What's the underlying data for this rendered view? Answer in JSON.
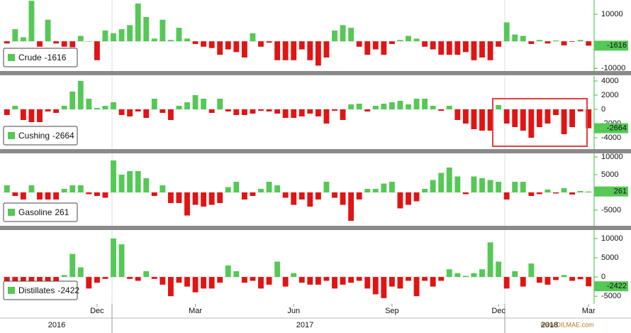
{
  "chart_data": [
    {
      "type": "bar",
      "name": "Crude",
      "color": "#55c855",
      "negative_color": "#e01414",
      "ylim": [
        -11000,
        15300
      ],
      "yticks": [
        10000,
        -10000
      ],
      "values": [
        -800,
        4500,
        1500,
        15000,
        -2000,
        8000,
        -800,
        -2000,
        -2200,
        2000,
        0,
        -7000,
        4000,
        3000,
        4500,
        6000,
        14000,
        9000,
        1000,
        8000,
        500,
        5000,
        1000,
        -1000,
        -2000,
        -2500,
        -5000,
        -3000,
        -4000,
        -6000,
        3000,
        -2000,
        -500,
        -7000,
        -7000,
        -7000,
        -3000,
        -7000,
        -9000,
        -6000,
        4000,
        6000,
        5000,
        -2000,
        -5000,
        -3000,
        -5000,
        -1000,
        500,
        2000,
        1000,
        -2000,
        -3000,
        -5000,
        -5000,
        -5000,
        -4000,
        -7000,
        -6000,
        -7000,
        -2000,
        7000,
        2500,
        2000,
        -1000,
        500,
        -800,
        300,
        -1500,
        -200,
        500,
        -1616
      ]
    },
    {
      "type": "bar",
      "name": "Cushing",
      "color": "#55c855",
      "negative_color": "#e01414",
      "ylim": [
        -5600,
        4700
      ],
      "yticks": [
        4000,
        2000,
        0,
        -2000,
        -4000
      ],
      "values": [
        -800,
        500,
        -1500,
        -1800,
        -1800,
        -300,
        -500,
        500,
        2500,
        4000,
        1500,
        200,
        500,
        1000,
        -800,
        -1000,
        -300,
        -1200,
        1500,
        -500,
        -1500,
        500,
        1000,
        2000,
        1500,
        -500,
        1500,
        -300,
        -800,
        -800,
        -600,
        -200,
        -300,
        -600,
        -1200,
        -1200,
        -1000,
        -600,
        -1000,
        -2000,
        -200,
        -1500,
        700,
        800,
        -300,
        500,
        800,
        1000,
        1200,
        700,
        1500,
        1500,
        500,
        -200,
        500,
        -1500,
        -2000,
        -2800,
        -3000,
        -3000,
        600,
        -2000,
        -2500,
        -3000,
        -4000,
        -2500,
        -2000,
        -800,
        -3500,
        -2500,
        -300,
        -2664
      ]
    },
    {
      "type": "bar",
      "name": "Gasoline",
      "color": "#55c855",
      "negative_color": "#e01414",
      "ylim": [
        -9400,
        11000
      ],
      "yticks": [
        10000,
        5000,
        -5000
      ],
      "values": [
        2000,
        -1000,
        -2000,
        2000,
        -2000,
        -2000,
        -2000,
        1000,
        2000,
        2000,
        -500,
        -1000,
        -1500,
        9000,
        5000,
        6000,
        6000,
        4000,
        -1000,
        2000,
        -3000,
        -3000,
        -6500,
        -3500,
        -4000,
        -3500,
        -3000,
        1500,
        3000,
        -2000,
        -1000,
        1000,
        3000,
        2000,
        -1500,
        -3500,
        -2000,
        -4000,
        -2000,
        3000,
        -1500,
        -3500,
        -8000,
        -2000,
        1000,
        1000,
        2500,
        3000,
        -4500,
        -3500,
        -2500,
        1000,
        3500,
        5500,
        7000,
        4500,
        -500,
        4500,
        4000,
        3500,
        3000,
        -2000,
        3000,
        3000,
        -1000,
        -500,
        800,
        -300,
        1200,
        -600,
        400,
        261
      ]
    },
    {
      "type": "bar",
      "name": "Distillates",
      "color": "#55c855",
      "negative_color": "#e01414",
      "ylim": [
        -7000,
        12200
      ],
      "yticks": [
        10000,
        5000,
        0,
        -5000
      ],
      "values": [
        -2000,
        -2000,
        -2000,
        -2000,
        -3000,
        -2000,
        -2000,
        500,
        6000,
        2500,
        -3000,
        -1500,
        -500,
        10000,
        8500,
        -500,
        -1000,
        1500,
        -500,
        -2000,
        -5000,
        -1500,
        -2500,
        -4000,
        -3000,
        -3000,
        -1500,
        3000,
        1500,
        -1500,
        -1000,
        -3000,
        -2000,
        4000,
        -2500,
        1000,
        -1500,
        -2000,
        -2000,
        -1000,
        -3000,
        -2000,
        -1500,
        -1000,
        -3000,
        -4500,
        -5500,
        -2500,
        -3000,
        -1000,
        -5000,
        -1000,
        -2500,
        -1000,
        2000,
        1000,
        300,
        1000,
        2000,
        9000,
        4000,
        -3000,
        1500,
        -2500,
        3500,
        -1500,
        -2000,
        -800,
        500,
        -1000,
        -600,
        -2422
      ]
    }
  ],
  "x_axis": {
    "categories": [
      null,
      null,
      null,
      null,
      null,
      null,
      null,
      null,
      null,
      null,
      null,
      "Dec",
      null,
      null,
      null,
      null,
      null,
      null,
      null,
      null,
      null,
      null,
      null,
      "Mar",
      null,
      null,
      null,
      null,
      null,
      null,
      null,
      null,
      null,
      null,
      null,
      "Jun",
      null,
      null,
      null,
      null,
      null,
      null,
      null,
      null,
      null,
      null,
      null,
      "Sep",
      null,
      null,
      null,
      null,
      null,
      null,
      null,
      null,
      null,
      null,
      null,
      null,
      "Dec",
      null,
      null,
      null,
      null,
      null,
      null,
      null,
      null,
      null,
      null,
      "Mar"
    ],
    "years": [
      "2016",
      "2017",
      "2018"
    ]
  },
  "watermark": "www.OILMAE.com"
}
